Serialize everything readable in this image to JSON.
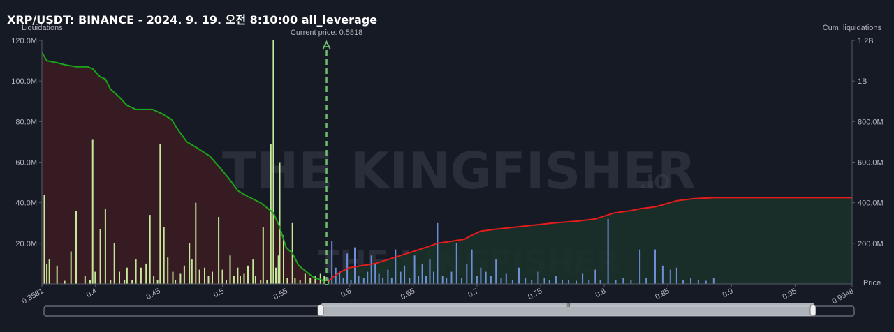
{
  "title": "XRP/USDT: BINANCE - 2024. 9. 19. 오전 8:10:00 all_leverage",
  "watermark": {
    "main": "THE KINGFISHER",
    "suffix": ".IO"
  },
  "colors": {
    "long_bar": "#c5e89a",
    "short_bar": "#6e8fd6",
    "long_cum_line": "#1aa31a",
    "short_cum_line": "#e51c1c",
    "long_fill": "#3a1c24",
    "short_fill": "#19302a",
    "current_price_line": "#6fbf6f"
  },
  "chart_data": {
    "type": "bar",
    "title": "",
    "left_axis_label": "Liquidations",
    "right_axis_label": "Cum. liquidations",
    "x_axis_label": "Price",
    "current_price_label": "Current price: 0.5818",
    "current_price": 0.5818,
    "xlim": [
      0.3581,
      0.9948
    ],
    "ylim_left": [
      0,
      120000000
    ],
    "ylim_right": [
      0,
      1200000000
    ],
    "x_ticks": [
      "0.3581",
      "0.4",
      "0.45",
      "0.5",
      "0.55",
      "0.6",
      "0.65",
      "0.7",
      "0.75",
      "0.8",
      "0.85",
      "0.9",
      "0.95",
      "0.9948"
    ],
    "x_tick_values": [
      0.3581,
      0.4,
      0.45,
      0.5,
      0.55,
      0.6,
      0.65,
      0.7,
      0.75,
      0.8,
      0.85,
      0.9,
      0.95,
      0.9948
    ],
    "y_ticks_left": [
      "120.0M",
      "100.0M",
      "80.0M",
      "60.0M",
      "40.0M",
      "20.0M"
    ],
    "y_tick_values_left": [
      120000000,
      100000000,
      80000000,
      60000000,
      40000000,
      20000000
    ],
    "y_ticks_right": [
      "1.2B",
      "1B",
      "800.0M",
      "600.0M",
      "400.0M",
      "200.0M"
    ],
    "y_tick_values_right": [
      1200000000,
      1000000000,
      800000000,
      600000000,
      400000000,
      200000000
    ],
    "long_liquidations": [
      [
        0.36,
        44000000
      ],
      [
        0.362,
        10000000
      ],
      [
        0.364,
        12000000
      ],
      [
        0.37,
        9000000
      ],
      [
        0.376,
        1500000
      ],
      [
        0.381,
        16000000
      ],
      [
        0.385,
        36000000
      ],
      [
        0.392,
        4000000
      ],
      [
        0.396,
        2000000
      ],
      [
        0.398,
        71000000
      ],
      [
        0.4,
        6000000
      ],
      [
        0.404,
        27000000
      ],
      [
        0.408,
        37000000
      ],
      [
        0.412,
        2000000
      ],
      [
        0.415,
        20000000
      ],
      [
        0.419,
        6000000
      ],
      [
        0.423,
        2000000
      ],
      [
        0.425,
        8000000
      ],
      [
        0.429,
        2000000
      ],
      [
        0.432,
        12000000
      ],
      [
        0.436,
        8000000
      ],
      [
        0.44,
        10000000
      ],
      [
        0.443,
        34000000
      ],
      [
        0.446,
        4000000
      ],
      [
        0.449,
        2000000
      ],
      [
        0.451,
        69000000
      ],
      [
        0.454,
        28000000
      ],
      [
        0.457,
        13000000
      ],
      [
        0.461,
        6000000
      ],
      [
        0.463,
        2000000
      ],
      [
        0.467,
        5000000
      ],
      [
        0.47,
        9000000
      ],
      [
        0.474,
        20000000
      ],
      [
        0.476,
        12000000
      ],
      [
        0.479,
        40000000
      ],
      [
        0.482,
        7000000
      ],
      [
        0.486,
        8000000
      ],
      [
        0.489,
        4000000
      ],
      [
        0.492,
        6000000
      ],
      [
        0.497,
        33000000
      ],
      [
        0.5,
        7000000
      ],
      [
        0.503,
        2000000
      ],
      [
        0.506,
        14000000
      ],
      [
        0.509,
        4000000
      ],
      [
        0.512,
        8000000
      ],
      [
        0.514,
        4000000
      ],
      [
        0.517,
        5000000
      ],
      [
        0.52,
        9000000
      ],
      [
        0.524,
        12000000
      ],
      [
        0.526,
        4000000
      ],
      [
        0.53,
        2000000
      ],
      [
        0.532,
        28000000
      ],
      [
        0.535,
        2000000
      ],
      [
        0.538,
        69000000
      ],
      [
        0.54,
        120000000
      ],
      [
        0.542,
        8000000
      ],
      [
        0.544,
        14000000
      ],
      [
        0.545,
        60000000
      ],
      [
        0.548,
        24000000
      ],
      [
        0.551,
        3000000
      ],
      [
        0.555,
        30000000
      ],
      [
        0.557,
        3000000
      ],
      [
        0.561,
        2000000
      ],
      [
        0.565,
        5000000
      ],
      [
        0.569,
        3000000
      ],
      [
        0.573,
        4000000
      ],
      [
        0.577,
        5000000
      ],
      [
        0.58,
        4000000
      ]
    ],
    "short_liquidations": [
      [
        0.583,
        3000000
      ],
      [
        0.586,
        21000000
      ],
      [
        0.589,
        8000000
      ],
      [
        0.592,
        6000000
      ],
      [
        0.595,
        3000000
      ],
      [
        0.598,
        15000000
      ],
      [
        0.601,
        2000000
      ],
      [
        0.604,
        18000000
      ],
      [
        0.607,
        4000000
      ],
      [
        0.611,
        3000000
      ],
      [
        0.614,
        6000000
      ],
      [
        0.617,
        14000000
      ],
      [
        0.62,
        10000000
      ],
      [
        0.623,
        5000000
      ],
      [
        0.626,
        3000000
      ],
      [
        0.63,
        7000000
      ],
      [
        0.633,
        3000000
      ],
      [
        0.636,
        17000000
      ],
      [
        0.64,
        6000000
      ],
      [
        0.643,
        9000000
      ],
      [
        0.647,
        3000000
      ],
      [
        0.651,
        14000000
      ],
      [
        0.654,
        4000000
      ],
      [
        0.657,
        10000000
      ],
      [
        0.66,
        4000000
      ],
      [
        0.663,
        12000000
      ],
      [
        0.666,
        6000000
      ],
      [
        0.669,
        30000000
      ],
      [
        0.673,
        4000000
      ],
      [
        0.676,
        3000000
      ],
      [
        0.68,
        6000000
      ],
      [
        0.684,
        20000000
      ],
      [
        0.688,
        3000000
      ],
      [
        0.692,
        10000000
      ],
      [
        0.696,
        17000000
      ],
      [
        0.7,
        4000000
      ],
      [
        0.703,
        8000000
      ],
      [
        0.707,
        6000000
      ],
      [
        0.711,
        4000000
      ],
      [
        0.715,
        12000000
      ],
      [
        0.719,
        3000000
      ],
      [
        0.723,
        5000000
      ],
      [
        0.728,
        2000000
      ],
      [
        0.733,
        8000000
      ],
      [
        0.738,
        3000000
      ],
      [
        0.743,
        2000000
      ],
      [
        0.748,
        6000000
      ],
      [
        0.753,
        3000000
      ],
      [
        0.757,
        2000000
      ],
      [
        0.762,
        4000000
      ],
      [
        0.767,
        2000000
      ],
      [
        0.772,
        2000000
      ],
      [
        0.778,
        1500000
      ],
      [
        0.783,
        5000000
      ],
      [
        0.788,
        2000000
      ],
      [
        0.793,
        7000000
      ],
      [
        0.797,
        2000000
      ],
      [
        0.803,
        32000000
      ],
      [
        0.809,
        2000000
      ],
      [
        0.815,
        3000000
      ],
      [
        0.821,
        2000000
      ],
      [
        0.828,
        17000000
      ],
      [
        0.833,
        3000000
      ],
      [
        0.84,
        17000000
      ],
      [
        0.846,
        9000000
      ],
      [
        0.852,
        7000000
      ],
      [
        0.857,
        8000000
      ],
      [
        0.862,
        2000000
      ],
      [
        0.868,
        3000000
      ],
      [
        0.874,
        2000000
      ],
      [
        0.88,
        1500000
      ],
      [
        0.886,
        3000000
      ]
    ],
    "long_cumulative": [
      [
        0.3581,
        1140000000
      ],
      [
        0.362,
        1100000000
      ],
      [
        0.37,
        1090000000
      ],
      [
        0.376,
        1080000000
      ],
      [
        0.385,
        1070000000
      ],
      [
        0.394,
        1070000000
      ],
      [
        0.398,
        1060000000
      ],
      [
        0.404,
        1020000000
      ],
      [
        0.408,
        1010000000
      ],
      [
        0.412,
        960000000
      ],
      [
        0.419,
        920000000
      ],
      [
        0.425,
        880000000
      ],
      [
        0.432,
        860000000
      ],
      [
        0.445,
        860000000
      ],
      [
        0.452,
        840000000
      ],
      [
        0.46,
        810000000
      ],
      [
        0.465,
        760000000
      ],
      [
        0.472,
        700000000
      ],
      [
        0.48,
        670000000
      ],
      [
        0.49,
        630000000
      ],
      [
        0.497,
        580000000
      ],
      [
        0.505,
        520000000
      ],
      [
        0.512,
        460000000
      ],
      [
        0.52,
        430000000
      ],
      [
        0.53,
        400000000
      ],
      [
        0.54,
        350000000
      ],
      [
        0.545,
        280000000
      ],
      [
        0.55,
        180000000
      ],
      [
        0.555,
        150000000
      ],
      [
        0.56,
        90000000
      ],
      [
        0.566,
        60000000
      ],
      [
        0.572,
        30000000
      ],
      [
        0.578,
        20000000
      ],
      [
        0.5818,
        0
      ]
    ],
    "short_cumulative": [
      [
        0.5818,
        0
      ],
      [
        0.586,
        30000000
      ],
      [
        0.593,
        60000000
      ],
      [
        0.6,
        80000000
      ],
      [
        0.61,
        90000000
      ],
      [
        0.62,
        100000000
      ],
      [
        0.63,
        120000000
      ],
      [
        0.64,
        140000000
      ],
      [
        0.65,
        160000000
      ],
      [
        0.66,
        180000000
      ],
      [
        0.669,
        200000000
      ],
      [
        0.68,
        210000000
      ],
      [
        0.69,
        220000000
      ],
      [
        0.696,
        240000000
      ],
      [
        0.703,
        260000000
      ],
      [
        0.715,
        270000000
      ],
      [
        0.73,
        280000000
      ],
      [
        0.745,
        290000000
      ],
      [
        0.76,
        300000000
      ],
      [
        0.78,
        310000000
      ],
      [
        0.793,
        320000000
      ],
      [
        0.803,
        340000000
      ],
      [
        0.808,
        350000000
      ],
      [
        0.82,
        360000000
      ],
      [
        0.828,
        370000000
      ],
      [
        0.84,
        380000000
      ],
      [
        0.846,
        390000000
      ],
      [
        0.857,
        410000000
      ],
      [
        0.87,
        420000000
      ],
      [
        0.886,
        425000000
      ],
      [
        0.9948,
        425000000
      ]
    ]
  },
  "scrollbar": {
    "handle_glyph": "III"
  }
}
